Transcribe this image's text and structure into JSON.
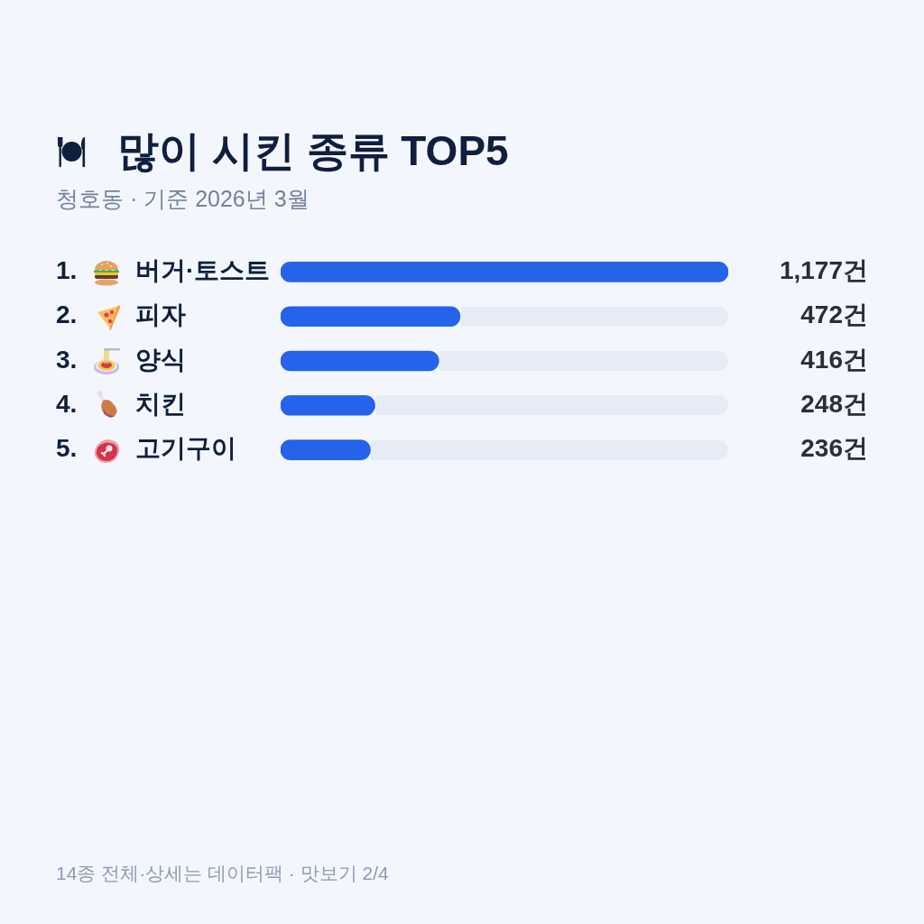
{
  "chart_data": {
    "type": "bar",
    "orientation": "horizontal",
    "title": "많이 시킨 종류 TOP5",
    "subtitle": "청호동 · 기준 2026년 3월",
    "categories": [
      "버거·토스트",
      "피자",
      "양식",
      "치킨",
      "고기구이"
    ],
    "values": [
      1177,
      472,
      416,
      248,
      236
    ],
    "value_labels": [
      "1,177건",
      "472건",
      "416건",
      "248건",
      "236건"
    ],
    "color": "#2563eb",
    "xlim": [
      0,
      1177
    ],
    "tick_labels": "y",
    "annotations": [
      "1.",
      "2.",
      "3.",
      "4.",
      "5.",
      "14종 전체·상세는 데이터팩 · 맛보기 2/4"
    ]
  }
}
